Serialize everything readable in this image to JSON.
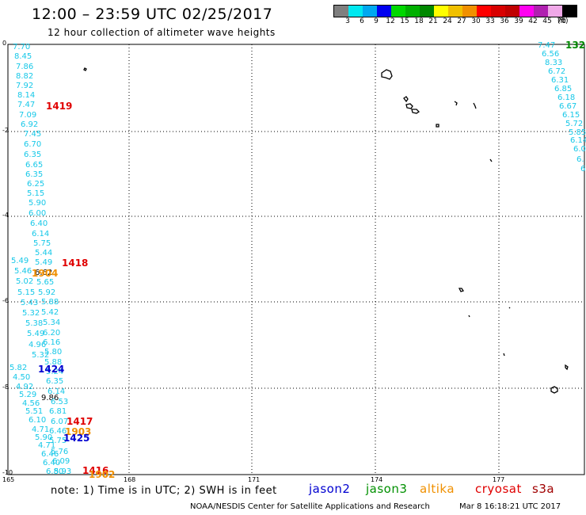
{
  "header": {
    "title": "12:00 – 23:59 UTC 02/25/2017",
    "subtitle": "12 hour collection of altimeter wave heights"
  },
  "color_scale": {
    "labels": [
      "3",
      "6",
      "9",
      "12",
      "15",
      "18",
      "21",
      "24",
      "27",
      "30",
      "33",
      "36",
      "39",
      "42",
      "45",
      "70"
    ],
    "colors": [
      "#7f7f7f",
      "#00e8f0",
      "#00a8f0",
      "#0000f0",
      "#00d800",
      "#00b000",
      "#008800",
      "#ffff00",
      "#f0c000",
      "#f09000",
      "#ff0000",
      "#d80000",
      "#c00000",
      "#ff00f0",
      "#b020b0",
      "#f0a8e8",
      "#000000"
    ],
    "unit": "(ft)"
  },
  "map": {
    "lon_labels": [
      "165",
      "168",
      "171",
      "174",
      "177"
    ],
    "lat_labels": [
      "0",
      "-2",
      "-4",
      "-6",
      "-8",
      "-10"
    ],
    "swh_track_a": [
      {
        "v": "7.70",
        "c": "#17c8e8"
      },
      {
        "v": "8.45",
        "c": "#17c8e8"
      },
      {
        "v": "7.86",
        "c": "#17c8e8"
      },
      {
        "v": "8.82",
        "c": "#17c8e8"
      },
      {
        "v": "7.92",
        "c": "#17c8e8"
      },
      {
        "v": "8.14",
        "c": "#17c8e8"
      },
      {
        "v": "7.47",
        "c": "#17c8e8"
      },
      {
        "v": "7.09",
        "c": "#17c8e8"
      },
      {
        "v": "6.92",
        "c": "#17c8e8"
      },
      {
        "v": "7.45",
        "c": "#17c8e8"
      },
      {
        "v": "6.70",
        "c": "#17c8e8"
      },
      {
        "v": "6.35",
        "c": "#17c8e8"
      },
      {
        "v": "6.65",
        "c": "#17c8e8"
      },
      {
        "v": "6.35",
        "c": "#17c8e8"
      },
      {
        "v": "6.25",
        "c": "#17c8e8"
      },
      {
        "v": "5.15",
        "c": "#17c8e8"
      },
      {
        "v": "5.90",
        "c": "#17c8e8"
      },
      {
        "v": "6.00",
        "c": "#17c8e8"
      },
      {
        "v": "6.40",
        "c": "#17c8e8"
      },
      {
        "v": "6.14",
        "c": "#17c8e8"
      },
      {
        "v": "5.75",
        "c": "#17c8e8"
      },
      {
        "v": "5.44",
        "c": "#17c8e8"
      },
      {
        "v": "5.49",
        "c": "#17c8e8"
      },
      {
        "v": "6.62",
        "c": "#000000"
      },
      {
        "v": "5.65",
        "c": "#17c8e8"
      },
      {
        "v": "5.92",
        "c": "#17c8e8"
      },
      {
        "v": "5.88",
        "c": "#17c8e8"
      },
      {
        "v": "5.42",
        "c": "#17c8e8"
      },
      {
        "v": "5.34",
        "c": "#17c8e8"
      },
      {
        "v": "6.20",
        "c": "#17c8e8"
      },
      {
        "v": "6.16",
        "c": "#17c8e8"
      },
      {
        "v": "5.80",
        "c": "#17c8e8"
      },
      {
        "v": "5.88",
        "c": "#17c8e8"
      },
      {
        "v": "5.24",
        "c": "#17c8e8"
      },
      {
        "v": "6.35",
        "c": "#17c8e8"
      },
      {
        "v": "6.14",
        "c": "#17c8e8"
      },
      {
        "v": "9.86",
        "c": "#000000"
      },
      {
        "v": "6.53",
        "c": "#17c8e8"
      },
      {
        "v": "6.81",
        "c": "#17c8e8"
      },
      {
        "v": "6.07",
        "c": "#17c8e8"
      },
      {
        "v": "6.46",
        "c": "#17c8e8"
      },
      {
        "v": "5.75",
        "c": "#17c8e8"
      },
      {
        "v": "5.76",
        "c": "#17c8e8"
      },
      {
        "v": "6.09",
        "c": "#17c8e8"
      },
      {
        "v": "5.93",
        "c": "#17c8e8"
      }
    ],
    "swh_track_b": [
      {
        "v": "5.49",
        "c": "#17c8e8"
      },
      {
        "v": "5.46",
        "c": "#17c8e8"
      },
      {
        "v": "5.02",
        "c": "#17c8e8"
      },
      {
        "v": "5.15",
        "c": "#17c8e8"
      },
      {
        "v": "5.43",
        "c": "#17c8e8"
      },
      {
        "v": "5.32",
        "c": "#17c8e8"
      },
      {
        "v": "5.38",
        "c": "#17c8e8"
      },
      {
        "v": "5.49",
        "c": "#17c8e8"
      },
      {
        "v": "4.96",
        "c": "#17c8e8"
      },
      {
        "v": "5.32",
        "c": "#17c8e8"
      },
      {
        "v": "5.82",
        "c": "#17c8e8"
      },
      {
        "v": "4.50",
        "c": "#17c8e8"
      },
      {
        "v": "4.92",
        "c": "#17c8e8"
      },
      {
        "v": "5.29",
        "c": "#17c8e8"
      },
      {
        "v": "4.56",
        "c": "#17c8e8"
      },
      {
        "v": "5.51",
        "c": "#17c8e8"
      },
      {
        "v": "6.10",
        "c": "#17c8e8"
      },
      {
        "v": "4.71",
        "c": "#17c8e8"
      },
      {
        "v": "5.90",
        "c": "#17c8e8"
      },
      {
        "v": "4.71",
        "c": "#17c8e8"
      },
      {
        "v": "6.46",
        "c": "#17c8e8"
      },
      {
        "v": "6.40",
        "c": "#17c8e8"
      },
      {
        "v": "6.80",
        "c": "#17c8e8"
      }
    ],
    "swh_track_c": [
      {
        "v": "7.47",
        "c": "#17c8e8"
      },
      {
        "v": "6.56",
        "c": "#17c8e8"
      },
      {
        "v": "8.33",
        "c": "#17c8e8"
      },
      {
        "v": "6.72",
        "c": "#17c8e8"
      },
      {
        "v": "6.31",
        "c": "#17c8e8"
      },
      {
        "v": "6.85",
        "c": "#17c8e8"
      },
      {
        "v": "6.18",
        "c": "#17c8e8"
      },
      {
        "v": "6.67",
        "c": "#17c8e8"
      },
      {
        "v": "6.15",
        "c": "#17c8e8"
      },
      {
        "v": "5.72",
        "c": "#17c8e8"
      },
      {
        "v": "5.85",
        "c": "#17c8e8"
      },
      {
        "v": "6.14",
        "c": "#17c8e8"
      },
      {
        "v": "6.0",
        "c": "#17c8e8"
      },
      {
        "v": "6.",
        "c": "#17c8e8"
      },
      {
        "v": "6",
        "c": "#17c8e8"
      }
    ],
    "pass_labels": [
      {
        "t": "1419",
        "c": "#e00000"
      },
      {
        "t": "1418",
        "c": "#e00000"
      },
      {
        "t": "1904",
        "c": "#f09000"
      },
      {
        "t": "1424",
        "c": "#0000d0"
      },
      {
        "t": "1417",
        "c": "#e00000"
      },
      {
        "t": "1903",
        "c": "#f09000"
      },
      {
        "t": "1425",
        "c": "#0000d0"
      },
      {
        "t": "1416",
        "c": "#e00000"
      },
      {
        "t": "1902",
        "c": "#f09000"
      },
      {
        "t": "132",
        "c": "#008800"
      }
    ]
  },
  "footer": {
    "note": "note: 1) Time is in UTC; 2) SWH is in feet",
    "legend": [
      {
        "label": "jason2",
        "color": "#0000d0"
      },
      {
        "label": "jason3",
        "color": "#009000"
      },
      {
        "label": "altika",
        "color": "#f09000"
      },
      {
        "label": "cryosat",
        "color": "#e00000"
      },
      {
        "label": "s3a",
        "color": "#a00000"
      }
    ],
    "credit": "NOAA/NESDIS Center for Satellite Applications and Research",
    "timestamp": "Mar  8 16:18:21 UTC 2017"
  }
}
